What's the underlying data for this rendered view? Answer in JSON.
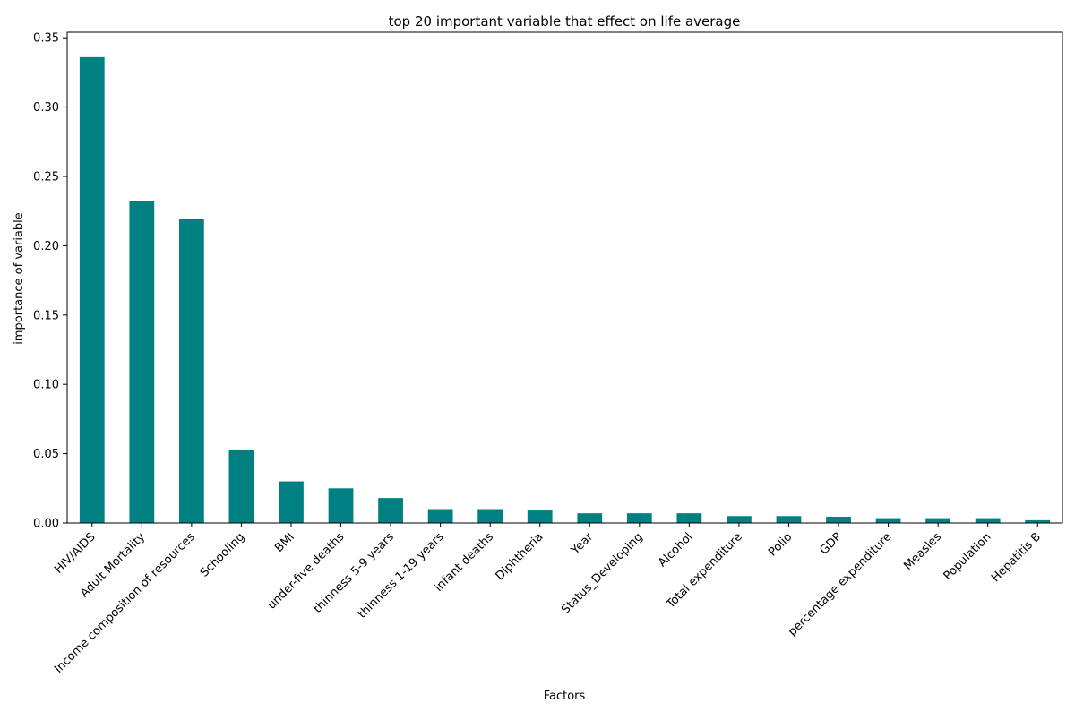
{
  "chart_data": {
    "type": "bar",
    "title": "top 20 important variable that effect on life average",
    "xlabel": "Factors",
    "ylabel": "importance of variable",
    "categories": [
      "HIV/AIDS",
      "Adult Mortality",
      "Income composition of resources",
      "Schooling",
      "BMI",
      "under-five deaths",
      "thinness 5-9 years",
      "thinness  1-19 years",
      "infant deaths",
      "Diphtheria",
      "Year",
      "Status_Developing",
      "Alcohol",
      "Total expenditure",
      "Polio",
      "GDP",
      "percentage expenditure",
      "Measles",
      "Population",
      "Hepatitis B"
    ],
    "values": [
      0.336,
      0.232,
      0.219,
      0.053,
      0.03,
      0.025,
      0.018,
      0.01,
      0.01,
      0.009,
      0.007,
      0.007,
      0.007,
      0.005,
      0.005,
      0.0045,
      0.0035,
      0.0035,
      0.0035,
      0.002
    ],
    "yticks": [
      "0.00",
      "0.05",
      "0.10",
      "0.15",
      "0.20",
      "0.25",
      "0.30",
      "0.35"
    ],
    "ylim": [
      0,
      0.35
    ],
    "bar_color": "#008080",
    "grid": false
  }
}
